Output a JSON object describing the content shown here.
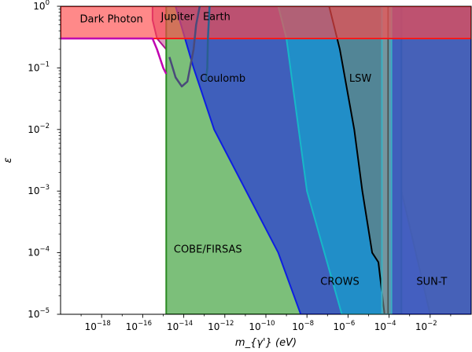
{
  "chart_data": {
    "type": "area",
    "title": "",
    "xlabel": "m_{γ'} (eV)",
    "ylabel": "ε",
    "x_scale": "log",
    "y_scale": "log",
    "xlim": [
      1e-20,
      1
    ],
    "ylim": [
      1e-05,
      1
    ],
    "x_ticks": [
      {
        "value": 1e-18,
        "base": "10",
        "exp": "−18"
      },
      {
        "value": 1e-16,
        "base": "10",
        "exp": "−16"
      },
      {
        "value": 1e-14,
        "base": "10",
        "exp": "−14"
      },
      {
        "value": 1e-12,
        "base": "10",
        "exp": "−12"
      },
      {
        "value": 1e-10,
        "base": "10",
        "exp": "−10"
      },
      {
        "value": 1e-08,
        "base": "10",
        "exp": "−8"
      },
      {
        "value": 1e-06,
        "base": "10",
        "exp": "−6"
      },
      {
        "value": 0.0001,
        "base": "10",
        "exp": "−4"
      },
      {
        "value": 0.01,
        "base": "10",
        "exp": "−2"
      }
    ],
    "y_ticks": [
      {
        "value": 1e-05,
        "base": "10",
        "exp": "−5"
      },
      {
        "value": 0.0001,
        "base": "10",
        "exp": "−4"
      },
      {
        "value": 0.001,
        "base": "10",
        "exp": "−3"
      },
      {
        "value": 0.01,
        "base": "10",
        "exp": "−2"
      },
      {
        "value": 0.1,
        "base": "10",
        "exp": "−1"
      },
      {
        "value": 1,
        "base": "10",
        "exp": "0"
      }
    ],
    "regions": [
      {
        "name": "SUN-T",
        "fill": "#dede4a",
        "edge": "#b5b52a",
        "opacity": 0.95,
        "boundary": [
          [
            0.0002,
            1e-05
          ],
          [
            0.00015,
            0.1
          ],
          [
            0.00015,
            1
          ],
          [
            1,
            1
          ],
          [
            1,
            1e-05
          ]
        ]
      },
      {
        "name": "",
        "fill": "#c0c0c0",
        "edge": "#b0b020",
        "opacity": 1,
        "boundary": [
          [
            0.0002,
            1e-05
          ],
          [
            0.00018,
            0.003
          ],
          [
            0.00025,
            0.1
          ],
          [
            0.0004,
            0.001
          ],
          [
            0.01,
            1e-05
          ]
        ]
      },
      {
        "name": "",
        "fill": "#bf4a8a",
        "edge": "#b01090",
        "opacity": 0.55,
        "boundary": [
          [
            3e-16,
            1
          ],
          [
            3e-16,
            0.6
          ],
          [
            5e-16,
            0.3
          ],
          [
            1.4e-15,
            0.2
          ],
          [
            1.4e-15,
            1
          ]
        ]
      },
      {
        "name": "COBE/FIRSAS",
        "fill": "#7cbf7a",
        "edge": "#2a8a22",
        "opacity": 1,
        "boundary": [
          [
            1.4e-15,
            1e-05
          ],
          [
            1.4e-15,
            1
          ],
          [
            0.0004,
            1
          ],
          [
            0.0004,
            1e-05
          ]
        ]
      },
      {
        "name": "Coulomb",
        "fill": "#3a57c0",
        "edge": "#0d1fe0",
        "opacity": 0.93,
        "boundary": [
          [
            5e-09,
            1e-05
          ],
          [
            4e-10,
            0.0001
          ],
          [
            3e-13,
            0.01
          ],
          [
            3e-14,
            0.1
          ],
          [
            4e-15,
            1
          ],
          [
            1,
            1
          ],
          [
            1,
            1e-05
          ]
        ]
      },
      {
        "name": "CROWS",
        "fill": "#2090c8",
        "edge": "#17b8c8",
        "opacity": 0.95,
        "boundary": [
          [
            5e-07,
            1e-05
          ],
          [
            1e-08,
            0.001
          ],
          [
            1e-09,
            0.3
          ],
          [
            4e-10,
            1
          ],
          [
            0.0001,
            1
          ],
          [
            0.0001,
            1e-05
          ]
        ]
      },
      {
        "name": "LSW",
        "fill": "#528596",
        "edge": "#000000",
        "opacity": 1,
        "boundary": [
          [
            6e-05,
            1e-05
          ],
          [
            3e-05,
            7e-05
          ],
          [
            1.5e-05,
            0.0001
          ],
          [
            5e-06,
            0.001
          ],
          [
            2e-06,
            0.01
          ],
          [
            4e-07,
            0.2
          ],
          [
            1.2e-07,
            1
          ],
          [
            9e-05,
            1
          ],
          [
            9e-05,
            1e-05
          ]
        ]
      },
      {
        "name": "",
        "fill": "#9aa6a6",
        "edge": "#3ab0c0",
        "opacity": 0.5,
        "boundary": [
          [
            4.5e-05,
            1e-05
          ],
          [
            4.5e-05,
            1
          ],
          [
            0.00013,
            1
          ],
          [
            0.00013,
            1e-05
          ]
        ]
      },
      {
        "name": "Dark Photon",
        "fill": "#ff4a4a",
        "edge": "#ff1a1a",
        "opacity": 0.65,
        "boundary": [
          [
            1e-20,
            0.3
          ],
          [
            1e-20,
            1
          ],
          [
            1,
            1
          ],
          [
            1,
            0.3
          ]
        ]
      }
    ],
    "curves": [
      {
        "name": "Jupiter",
        "color": "#c000b0",
        "points": [
          [
            1e-20,
            0.3
          ],
          [
            3e-16,
            0.3
          ],
          [
            5e-16,
            0.2
          ],
          [
            1e-15,
            0.1
          ],
          [
            1.4e-15,
            0.08
          ]
        ]
      },
      {
        "name": "Earth",
        "color": "#4a4a7a",
        "points": [
          [
            2e-15,
            0.15
          ],
          [
            4e-15,
            0.07
          ],
          [
            8e-15,
            0.05
          ],
          [
            1.5e-14,
            0.06
          ],
          [
            3e-14,
            0.2
          ],
          [
            4e-14,
            0.5
          ],
          [
            6e-14,
            1
          ]
        ]
      },
      {
        "name": "",
        "color": "#2a6090",
        "points": [
          [
            1.2e-13,
            0.06
          ],
          [
            1.4e-13,
            0.1
          ],
          [
            1.5e-13,
            0.3
          ],
          [
            1.8e-13,
            1
          ]
        ]
      }
    ]
  }
}
